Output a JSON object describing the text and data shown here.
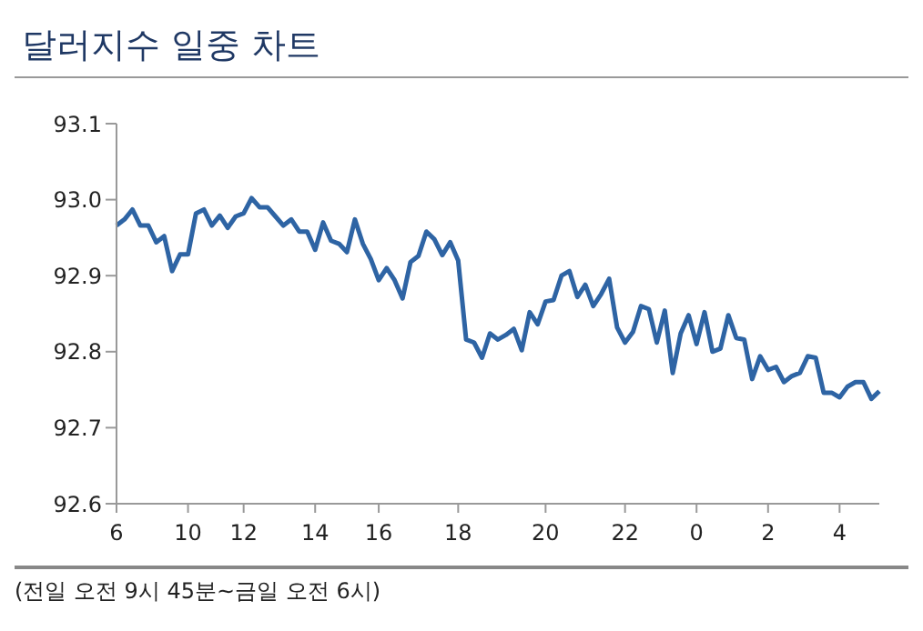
{
  "chart_data": {
    "type": "line",
    "title": "달러지수 일중 차트",
    "annotations": [
      "(전일 오전 9시 45분~금일 오전 6시)"
    ],
    "categories": [
      "6",
      null,
      null,
      null,
      null,
      null,
      null,
      null,
      null,
      "10",
      null,
      null,
      null,
      null,
      null,
      null,
      "12",
      null,
      null,
      null,
      null,
      null,
      null,
      null,
      null,
      "14",
      null,
      null,
      null,
      null,
      null,
      null,
      null,
      "16",
      null,
      null,
      null,
      null,
      null,
      null,
      null,
      null,
      null,
      "18",
      null,
      null,
      null,
      null,
      null,
      null,
      null,
      null,
      null,
      null,
      "20",
      null,
      null,
      null,
      null,
      null,
      null,
      null,
      null,
      null,
      "22",
      null,
      null,
      null,
      null,
      null,
      null,
      null,
      null,
      "0",
      null,
      null,
      null,
      null,
      null,
      null,
      null,
      null,
      "2",
      null,
      null,
      null,
      null,
      null,
      null,
      null,
      null,
      "4",
      null,
      null,
      null,
      null,
      null
    ],
    "series": [
      {
        "color": "#2e64a4",
        "values": [
          92.966,
          92.974,
          92.987,
          92.966,
          92.966,
          92.944,
          92.952,
          92.906,
          92.928,
          92.928,
          92.982,
          92.987,
          92.966,
          92.979,
          92.963,
          92.978,
          92.982,
          93.002,
          92.99,
          92.99,
          92.978,
          92.966,
          92.974,
          92.958,
          92.958,
          92.934,
          92.97,
          92.946,
          92.942,
          92.931,
          92.974,
          92.942,
          92.922,
          92.894,
          92.91,
          92.894,
          92.87,
          92.918,
          92.926,
          92.958,
          92.948,
          92.927,
          92.944,
          92.92,
          92.816,
          92.812,
          92.792,
          92.824,
          92.816,
          92.822,
          92.83,
          92.802,
          92.852,
          92.836,
          92.866,
          92.868,
          92.9,
          92.906,
          92.872,
          92.888,
          92.86,
          92.876,
          92.896,
          92.832,
          92.812,
          92.826,
          92.86,
          92.856,
          92.812,
          92.854,
          92.772,
          92.824,
          92.848,
          92.81,
          92.852,
          92.8,
          92.804,
          92.848,
          92.818,
          92.816,
          92.764,
          92.794,
          92.776,
          92.78,
          92.76,
          92.768,
          92.772,
          92.794,
          92.792,
          92.746,
          92.746,
          92.74,
          92.754,
          92.76,
          92.76,
          92.738,
          92.748
        ]
      }
    ],
    "ylim": [
      92.6,
      93.1
    ],
    "yticks": [
      92.6,
      92.7,
      92.8,
      92.9,
      {
        "value": 93.0,
        "label": "93.0"
      },
      93.1
    ],
    "grid": false,
    "marker": "none",
    "line_style": "solid"
  }
}
